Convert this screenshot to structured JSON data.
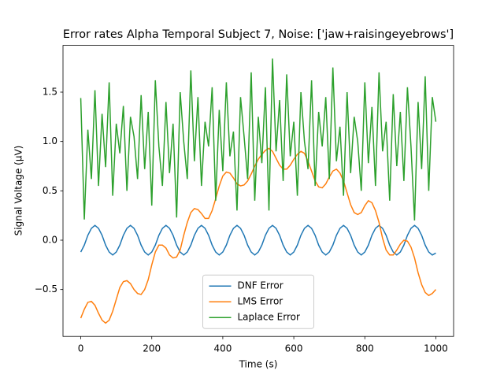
{
  "chart_data": {
    "type": "line",
    "title": "Error rates Alpha Temporal Subject 7, Noise: ['jaw+raisingeyebrows']",
    "xlabel": "Time (s)",
    "ylabel": "Signal Voltage (μV)",
    "x": [
      0,
      10,
      20,
      30,
      40,
      50,
      60,
      70,
      80,
      90,
      100,
      110,
      120,
      130,
      140,
      150,
      160,
      170,
      180,
      190,
      200,
      210,
      220,
      230,
      240,
      250,
      260,
      270,
      280,
      290,
      300,
      310,
      320,
      330,
      340,
      350,
      360,
      370,
      380,
      390,
      400,
      410,
      420,
      430,
      440,
      450,
      460,
      470,
      480,
      490,
      500,
      510,
      520,
      530,
      540,
      550,
      560,
      570,
      580,
      590,
      600,
      610,
      620,
      630,
      640,
      650,
      660,
      670,
      680,
      690,
      700,
      710,
      720,
      730,
      740,
      750,
      760,
      770,
      780,
      790,
      800,
      810,
      820,
      830,
      840,
      850,
      860,
      870,
      880,
      890,
      900,
      910,
      920,
      930,
      940,
      950,
      960,
      970,
      980,
      990,
      1000
    ],
    "series": [
      {
        "name": "DNF Error",
        "color": "#1f77b4",
        "values": [
          -0.12,
          -0.05,
          0.05,
          0.12,
          0.15,
          0.12,
          0.05,
          -0.05,
          -0.12,
          -0.15,
          -0.12,
          -0.05,
          0.05,
          0.12,
          0.15,
          0.12,
          0.05,
          -0.05,
          -0.12,
          -0.15,
          -0.12,
          -0.05,
          0.05,
          0.12,
          0.15,
          0.12,
          0.05,
          -0.05,
          -0.12,
          -0.15,
          -0.12,
          -0.05,
          0.05,
          0.12,
          0.15,
          0.12,
          0.05,
          -0.05,
          -0.12,
          -0.15,
          -0.12,
          -0.05,
          0.05,
          0.12,
          0.15,
          0.12,
          0.05,
          -0.05,
          -0.12,
          -0.15,
          -0.12,
          -0.05,
          0.05,
          0.12,
          0.15,
          0.12,
          0.05,
          -0.05,
          -0.12,
          -0.15,
          -0.12,
          -0.05,
          0.05,
          0.12,
          0.15,
          0.12,
          0.05,
          -0.05,
          -0.12,
          -0.15,
          -0.12,
          -0.05,
          0.05,
          0.12,
          0.15,
          0.12,
          0.05,
          -0.05,
          -0.12,
          -0.15,
          -0.12,
          -0.05,
          0.05,
          0.12,
          0.15,
          0.12,
          0.05,
          -0.05,
          -0.12,
          -0.15,
          -0.12,
          -0.05,
          0.05,
          0.12,
          0.15,
          0.12,
          0.05,
          -0.05,
          -0.12,
          -0.15,
          -0.13
        ]
      },
      {
        "name": "LMS Error",
        "color": "#ff7f0e",
        "values": [
          -0.79,
          -0.7,
          -0.63,
          -0.62,
          -0.66,
          -0.74,
          -0.81,
          -0.84,
          -0.81,
          -0.72,
          -0.6,
          -0.48,
          -0.42,
          -0.41,
          -0.44,
          -0.5,
          -0.54,
          -0.55,
          -0.5,
          -0.4,
          -0.25,
          -0.12,
          -0.05,
          -0.05,
          -0.08,
          -0.15,
          -0.18,
          -0.17,
          -0.1,
          0.05,
          0.18,
          0.28,
          0.32,
          0.31,
          0.27,
          0.22,
          0.22,
          0.3,
          0.42,
          0.55,
          0.65,
          0.69,
          0.68,
          0.63,
          0.57,
          0.55,
          0.56,
          0.6,
          0.67,
          0.75,
          0.82,
          0.87,
          0.91,
          0.93,
          0.9,
          0.83,
          0.76,
          0.72,
          0.72,
          0.76,
          0.82,
          0.87,
          0.9,
          0.88,
          0.8,
          0.7,
          0.6,
          0.54,
          0.53,
          0.57,
          0.64,
          0.7,
          0.72,
          0.68,
          0.6,
          0.48,
          0.36,
          0.28,
          0.26,
          0.28,
          0.35,
          0.4,
          0.38,
          0.3,
          0.18,
          0.02,
          -0.1,
          -0.15,
          -0.15,
          -0.1,
          -0.04,
          0.0,
          -0.01,
          -0.07,
          -0.18,
          -0.33,
          -0.45,
          -0.53,
          -0.56,
          -0.54,
          -0.5
        ]
      },
      {
        "name": "Laplace Error",
        "color": "#2ca02c",
        "values": [
          1.44,
          0.21,
          1.12,
          0.62,
          1.52,
          0.55,
          1.28,
          0.74,
          1.6,
          0.45,
          1.18,
          0.88,
          1.36,
          0.5,
          1.25,
          1.05,
          0.62,
          1.47,
          0.72,
          1.3,
          0.35,
          1.62,
          0.95,
          0.55,
          1.4,
          0.68,
          1.18,
          0.23,
          1.5,
          1.0,
          0.62,
          1.72,
          0.8,
          1.45,
          0.55,
          1.2,
          0.95,
          1.55,
          0.4,
          1.32,
          0.7,
          1.6,
          0.85,
          1.1,
          0.3,
          1.45,
          1.05,
          0.62,
          1.7,
          0.4,
          1.25,
          0.78,
          1.55,
          0.3,
          1.84,
          0.9,
          1.42,
          0.6,
          1.68,
          0.85,
          1.2,
          0.45,
          1.5,
          1.0,
          0.72,
          1.62,
          0.55,
          1.3,
          0.95,
          1.45,
          0.62,
          1.75,
          0.8,
          1.15,
          0.45,
          1.5,
          0.68,
          1.25,
          1.0,
          0.5,
          1.6,
          0.78,
          1.35,
          0.55,
          1.7,
          0.9,
          1.2,
          0.4,
          1.48,
          0.75,
          1.3,
          0.6,
          1.55,
          0.95,
          0.2,
          1.4,
          0.72,
          1.66,
          0.5,
          1.45,
          1.2
        ]
      }
    ],
    "xlim": [
      -50,
      1050
    ],
    "ylim": [
      -0.975,
      1.974
    ],
    "xticks": [
      0,
      200,
      400,
      600,
      800,
      1000
    ],
    "yticks": [
      {
        "value": -0.5,
        "label": "−0.5"
      },
      {
        "value": 0,
        "label": "0.0"
      },
      0.5,
      {
        "value": 1,
        "label": "1.0"
      },
      1.5
    ],
    "legend": "lower center"
  }
}
